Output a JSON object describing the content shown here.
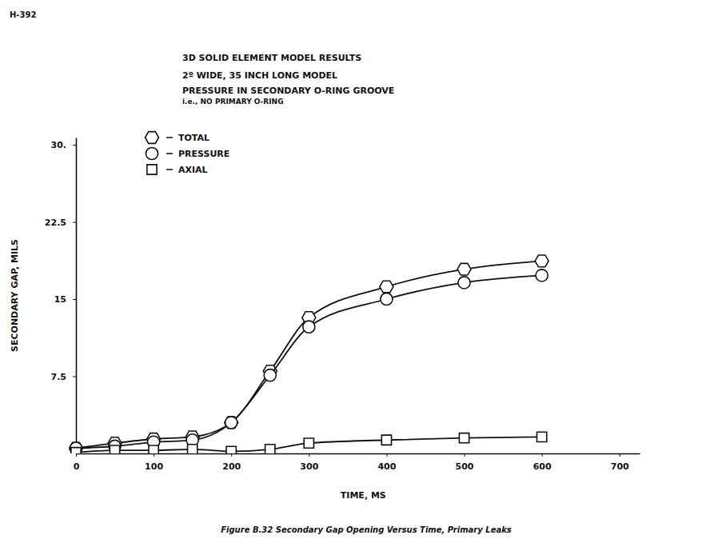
{
  "chart_data": {
    "type": "line",
    "annotations": [
      "H-392"
    ],
    "title": "3D SOLID ELEMENT MODEL RESULTS",
    "subtitle": [
      "2º WIDE, 35 INCH LONG MODEL",
      "PRESSURE IN SECONDARY O-RING GROOVE",
      "i.e., NO PRIMARY O-RING"
    ],
    "caption": "Figure B.32 Secondary Gap Opening Versus Time, Primary Leaks",
    "x_label": "TIME, MS",
    "y_label": "SECONDARY GAP, MILS",
    "x": [
      0,
      50,
      100,
      150,
      200,
      250,
      300,
      400,
      500,
      600
    ],
    "series": [
      {
        "name": "TOTAL",
        "color": "#111111",
        "marker": "hexagon",
        "line_style": "solid",
        "values": [
          0.5,
          1.0,
          1.4,
          1.6,
          3.0,
          8.0,
          13.2,
          16.2,
          17.9,
          18.7
        ]
      },
      {
        "name": "PRESSURE",
        "color": "#111111",
        "marker": "circle",
        "line_style": "solid",
        "values": [
          0.5,
          0.7,
          1.1,
          1.3,
          3.0,
          7.6,
          12.3,
          15.0,
          16.6,
          17.3
        ]
      },
      {
        "name": "AXIAL",
        "color": "#111111",
        "marker": "square",
        "line_style": "solid",
        "values": [
          0.1,
          0.3,
          0.3,
          0.4,
          0.2,
          0.4,
          1.0,
          1.3,
          1.5,
          1.6
        ]
      }
    ],
    "xlim": [
      0,
      726
    ],
    "xticks": [
      0,
      100,
      200,
      300,
      400,
      500,
      600,
      700
    ],
    "ylim": [
      0,
      30.7
    ],
    "yticks": [
      7.5,
      15,
      22.5,
      {
        "value": 30,
        "label": "30."
      }
    ],
    "grid": false,
    "legend": "upper left"
  }
}
